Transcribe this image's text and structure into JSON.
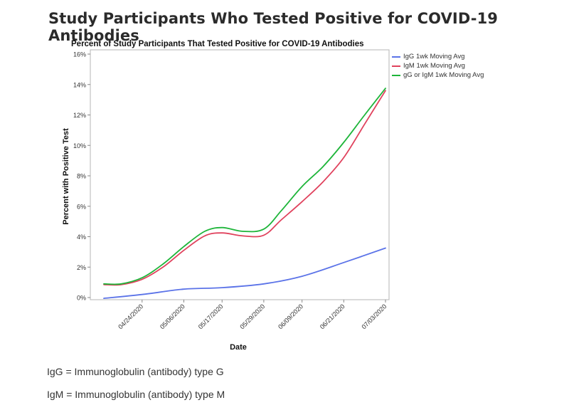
{
  "page": {
    "title": "Study Participants Who Tested Positive for COVID-19 Antibodies",
    "footnotes": [
      "IgG = Immunoglobulin (antibody) type G",
      "IgM = Immunoglobulin (antibody) type M"
    ]
  },
  "chart_data": {
    "type": "line",
    "title": "Percent of Study Participants That Tested Positive for COVID-19 Antibodies",
    "xlabel": "Date",
    "ylabel": "Percent with Positive Test",
    "ylim": [
      0,
      16
    ],
    "yticks": [
      0,
      2,
      4,
      6,
      8,
      10,
      12,
      14,
      16
    ],
    "ytick_labels": [
      "0%",
      "2%",
      "4%",
      "6%",
      "8%",
      "10%",
      "12%",
      "14%",
      "16%"
    ],
    "xlim": [
      "2020-04-13",
      "2020-07-03"
    ],
    "xticks": [
      "2020-04-24",
      "2020-05-06",
      "2020-05-17",
      "2020-05-29",
      "2020-06-09",
      "2020-06-21",
      "2020-07-03"
    ],
    "xtick_labels": [
      "04/24/2020",
      "05/06/2020",
      "05/17/2020",
      "05/29/2020",
      "06/09/2020",
      "06/21/2020",
      "07/03/2020"
    ],
    "grid": false,
    "legend_position": "right",
    "series": [
      {
        "name": "IgG 1wk Moving Avg",
        "color": "#5b73e8",
        "x": [
          "2020-04-13",
          "2020-04-24",
          "2020-05-06",
          "2020-05-17",
          "2020-05-29",
          "2020-06-09",
          "2020-06-21",
          "2020-07-03"
        ],
        "y": [
          -0.05,
          0.2,
          0.55,
          0.65,
          0.9,
          1.4,
          2.3,
          3.25
        ]
      },
      {
        "name": "IgM 1wk Moving Avg",
        "color": "#e0425d",
        "x": [
          "2020-04-13",
          "2020-04-18",
          "2020-04-24",
          "2020-04-30",
          "2020-05-06",
          "2020-05-12",
          "2020-05-17",
          "2020-05-23",
          "2020-05-29",
          "2020-06-03",
          "2020-06-09",
          "2020-06-15",
          "2020-06-21",
          "2020-06-27",
          "2020-07-03"
        ],
        "y": [
          0.85,
          0.85,
          1.2,
          2.0,
          3.1,
          4.05,
          4.25,
          4.05,
          4.1,
          5.1,
          6.3,
          7.6,
          9.2,
          11.4,
          13.6
        ]
      },
      {
        "name": "gG or IgM 1wk Moving Avg",
        "color": "#1eb53a",
        "x": [
          "2020-04-13",
          "2020-04-18",
          "2020-04-24",
          "2020-04-30",
          "2020-05-06",
          "2020-05-12",
          "2020-05-17",
          "2020-05-23",
          "2020-05-29",
          "2020-06-03",
          "2020-06-09",
          "2020-06-15",
          "2020-06-21",
          "2020-06-27",
          "2020-07-03"
        ],
        "y": [
          0.9,
          0.9,
          1.3,
          2.2,
          3.35,
          4.35,
          4.6,
          4.35,
          4.5,
          5.7,
          7.3,
          8.6,
          10.2,
          12.0,
          13.75
        ]
      }
    ]
  }
}
